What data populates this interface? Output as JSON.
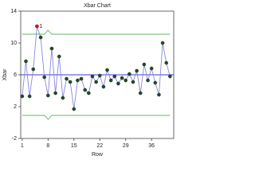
{
  "chart_data": {
    "type": "line",
    "title": "Xbar Chart",
    "x_label": "Row",
    "y_label": "Xbar",
    "x": [
      1,
      2,
      3,
      4,
      5,
      6,
      7,
      8,
      9,
      10,
      11,
      12,
      13,
      14,
      15,
      16,
      17,
      18,
      19,
      20,
      21,
      22,
      23,
      24,
      25,
      26,
      27,
      28,
      29,
      30,
      31,
      32,
      33,
      34,
      35,
      36,
      37,
      38,
      39,
      40,
      41
    ],
    "series": [
      {
        "color": "#8888dd",
        "marker_color": "#1f4d1f",
        "values": [
          3.3,
          7.7,
          3.3,
          6.7,
          12.1,
          10.7,
          5.7,
          3.4,
          9.3,
          3.7,
          8.3,
          3.1,
          5.5,
          5.1,
          1.7,
          5.3,
          5.5,
          4.1,
          3.7,
          5.8,
          5.1,
          5.9,
          4.5,
          6.6,
          5.3,
          5.8,
          4.9,
          5.6,
          5.3,
          6.1,
          5.1,
          6.5,
          3.7,
          7.3,
          5.3,
          6.8,
          5.0,
          3.5,
          10.0,
          7.5,
          5.8
        ]
      },
      {
        "color": "#5cb85c",
        "values": [
          11.1,
          11.1,
          11.1,
          11.1,
          11.1,
          11.1,
          11.1,
          11.6,
          11.1,
          11.1,
          11.1,
          11.1,
          11.1,
          11.1,
          11.1,
          11.1,
          11.1,
          11.1,
          11.1,
          11.1,
          11.1,
          11.1,
          11.1,
          11.1,
          11.1,
          11.1,
          11.1,
          11.1,
          11.1,
          11.1,
          11.1,
          11.1,
          11.1,
          11.1,
          11.1,
          11.1,
          11.1,
          11.1,
          11.1,
          11.1,
          11.1
        ]
      },
      {
        "color": "#5cb85c",
        "values": [
          0.9,
          0.9,
          0.9,
          0.9,
          0.9,
          0.9,
          0.9,
          0.4,
          0.9,
          0.9,
          0.9,
          0.9,
          0.9,
          0.9,
          0.9,
          0.9,
          0.9,
          0.9,
          0.9,
          0.9,
          0.9,
          0.9,
          0.9,
          0.9,
          0.9,
          0.9,
          0.9,
          0.9,
          0.9,
          0.9,
          0.9,
          0.9,
          0.9,
          0.9,
          0.9,
          0.9,
          0.9,
          0.9,
          0.9,
          0.9,
          0.9
        ]
      }
    ],
    "center": 6.0,
    "center_color": "#3a3ae0",
    "annotations": [
      {
        "x": 5,
        "text": "1",
        "color": "#e01010"
      }
    ],
    "xlim": [
      0.6,
      42
    ],
    "xticks": [
      1,
      8,
      15,
      22,
      29,
      36
    ],
    "ylim": [
      -2,
      14
    ],
    "yticks": [
      -2,
      2,
      6,
      10,
      14
    ]
  }
}
